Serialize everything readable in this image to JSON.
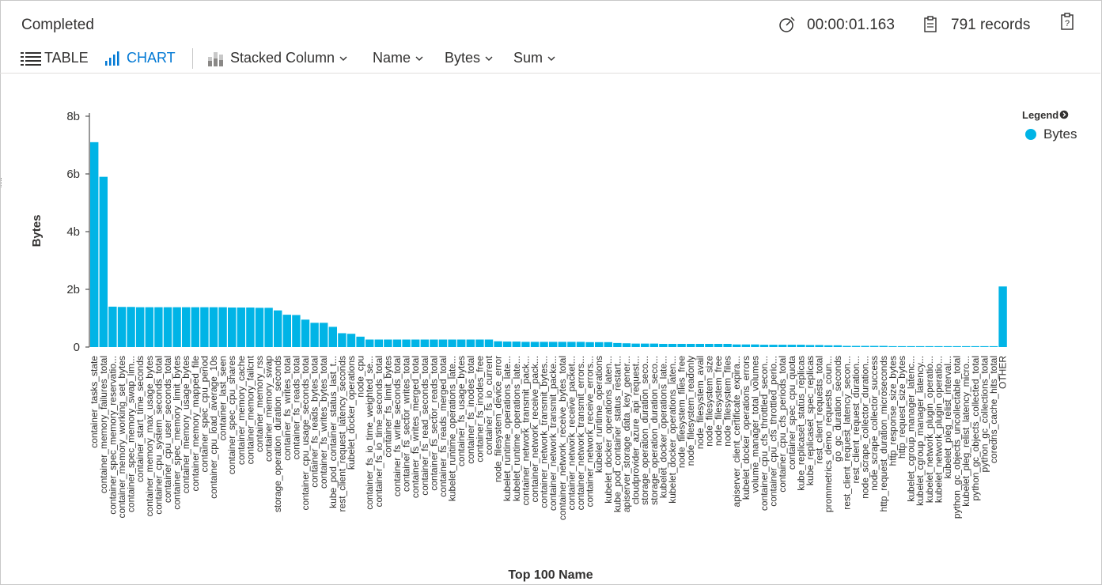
{
  "status": "Completed",
  "duration": "00:00:01.163",
  "records": "791 records",
  "toolbar": {
    "table_label": "TABLE",
    "chart_label": "CHART",
    "chart_type": "Stacked Column",
    "x_column": "Name",
    "y_column": "Bytes",
    "aggregation": "Sum"
  },
  "colors": {
    "bar": "#00b4e6",
    "accent": "#0078d4"
  },
  "chart_data": {
    "type": "bar",
    "xlabel": "Top 100 Name",
    "ylabel": "Bytes",
    "y_ticks": [
      "8b",
      "6b",
      "4b",
      "2b",
      "0"
    ],
    "ylim": [
      0,
      8000000000
    ],
    "grid": false,
    "legend": {
      "title": "Legend",
      "position": "top-right",
      "entries": [
        "Bytes"
      ]
    },
    "series": [
      {
        "name": "Bytes"
      }
    ],
    "categories": [
      "container_tasks_state",
      "container_memory_failures_total",
      "container_spec_memory_reservatio...",
      "container_memory_working_set_bytes",
      "container_spec_memory_swap_lim...",
      "container_start_time_seconds",
      "container_memory_max_usage_bytes",
      "container_cpu_system_seconds_total",
      "container_cpu_user_seconds_total",
      "container_spec_memory_limit_bytes",
      "container_memory_usage_bytes",
      "container_memory_mapped_file",
      "container_spec_cpu_period",
      "container_cpu_load_average_10s",
      "container_last_seen",
      "container_spec_cpu_shares",
      "container_memory_cache",
      "container_memory_failcnt",
      "container_memory_rss",
      "container_memory_swap",
      "storage_operation_duration_seconds",
      "container_fs_writes_total",
      "container_fs_reads_total",
      "container_cpu_usage_seconds_total",
      "container_fs_reads_bytes_total",
      "container_fs_writes_bytes_total",
      "kube_pod_container_status_last_t...",
      "rest_client_request_latency_seconds",
      "kubelet_docker_operations",
      "node_cpu",
      "container_fs_io_time_weighted_se...",
      "container_fs_io_time_seconds_total",
      "container_fs_limit_bytes",
      "container_fs_write_seconds_total",
      "container_fs_sector_writes_total",
      "container_fs_writes_merged_total",
      "container_fs_read_seconds_total",
      "container_fs_sector_reads_total",
      "container_fs_reads_merged_total",
      "kubelet_runtime_operations_late...",
      "container_fs_usage_bytes",
      "container_fs_inodes_total",
      "container_fs_inodes_free",
      "container_fs_io_current",
      "node_filesystem_device_error",
      "kubelet_runtime_operations_late...",
      "kubelet_runtime_operations_late...",
      "container_network_transmit_pack...",
      "container_network_receive_pack...",
      "container_network_transmit_bytes...",
      "container_network_transmit_packe...",
      "container_network_receive_bytes_total",
      "container_network_receive_packet...",
      "container_network_transmit_errors...",
      "container_network_receive_errors...",
      "kubelet_runtime_operations",
      "kubelet_docker_operations_laten...",
      "kube_pod_container_status_restart...",
      "apiserver_storage_data_key_gener...",
      "cloudprovider_azure_api_request...",
      "storage_operation_duration_seco...",
      "storage_operation_duration_seco...",
      "kubelet_docker_operations_late...",
      "kubelet_docker_operations_laten...",
      "node_filesystem_files_free",
      "node_filesystem_readonly",
      "node_filesystem_avail",
      "node_filesystem_size",
      "node_filesystem_free",
      "node_filesystem_files",
      "apiserver_client_certificate_expira...",
      "kubelet_docker_operations_errors",
      "volume_manager_total_volumes",
      "container_cpu_cfs_throttled_secon...",
      "container_cpu_cfs_throttled_perio...",
      "container_cpu_cfs_periods_total",
      "container_spec_cpu_quota",
      "kube_replicaset_status_replicas",
      "kube_replicaset_spec_replicas",
      "rest_client_requests_total",
      "prommetrics_demo_requests_coun...",
      "go_gc_duration_seconds",
      "rest_client_request_latency_secon...",
      "rest_client_request_duration...",
      "node_scrape_collector_duration...",
      "node_scrape_collector_success",
      "http_request_duration_microseconds",
      "http_response_size_bytes",
      "http_request_size_bytes",
      "kubelet_cgroup_manager_latenc...",
      "kubelet_cgroup_manager_latency...",
      "kubelet_network_plugin_operatio...",
      "kubelet_network_plugin_operatio...",
      "kubelet_pleg_relist_interval...",
      "python_gc_objects_uncollectable_total",
      "kubelet_pleg_relist_latency_micro...",
      "python_gc_objects_collected_total",
      "python_gc_collections_total",
      "coredns_cache_hits_total",
      "OTHER"
    ],
    "values": [
      7100000000,
      5900000000,
      1400000000,
      1390000000,
      1390000000,
      1380000000,
      1380000000,
      1380000000,
      1380000000,
      1380000000,
      1380000000,
      1380000000,
      1380000000,
      1380000000,
      1380000000,
      1370000000,
      1370000000,
      1370000000,
      1360000000,
      1360000000,
      1270000000,
      1120000000,
      1110000000,
      950000000,
      840000000,
      840000000,
      700000000,
      480000000,
      460000000,
      360000000,
      260000000,
      260000000,
      260000000,
      260000000,
      260000000,
      260000000,
      260000000,
      260000000,
      260000000,
      260000000,
      260000000,
      260000000,
      260000000,
      260000000,
      200000000,
      190000000,
      190000000,
      180000000,
      180000000,
      180000000,
      180000000,
      180000000,
      180000000,
      180000000,
      170000000,
      170000000,
      170000000,
      140000000,
      130000000,
      120000000,
      120000000,
      120000000,
      110000000,
      110000000,
      110000000,
      110000000,
      110000000,
      110000000,
      110000000,
      110000000,
      90000000,
      90000000,
      90000000,
      80000000,
      80000000,
      80000000,
      80000000,
      80000000,
      70000000,
      70000000,
      60000000,
      60000000,
      40000000,
      40000000,
      40000000,
      40000000,
      40000000,
      30000000,
      30000000,
      30000000,
      30000000,
      30000000,
      30000000,
      30000000,
      30000000,
      30000000,
      30000000,
      30000000,
      30000000,
      2100000000
    ]
  }
}
